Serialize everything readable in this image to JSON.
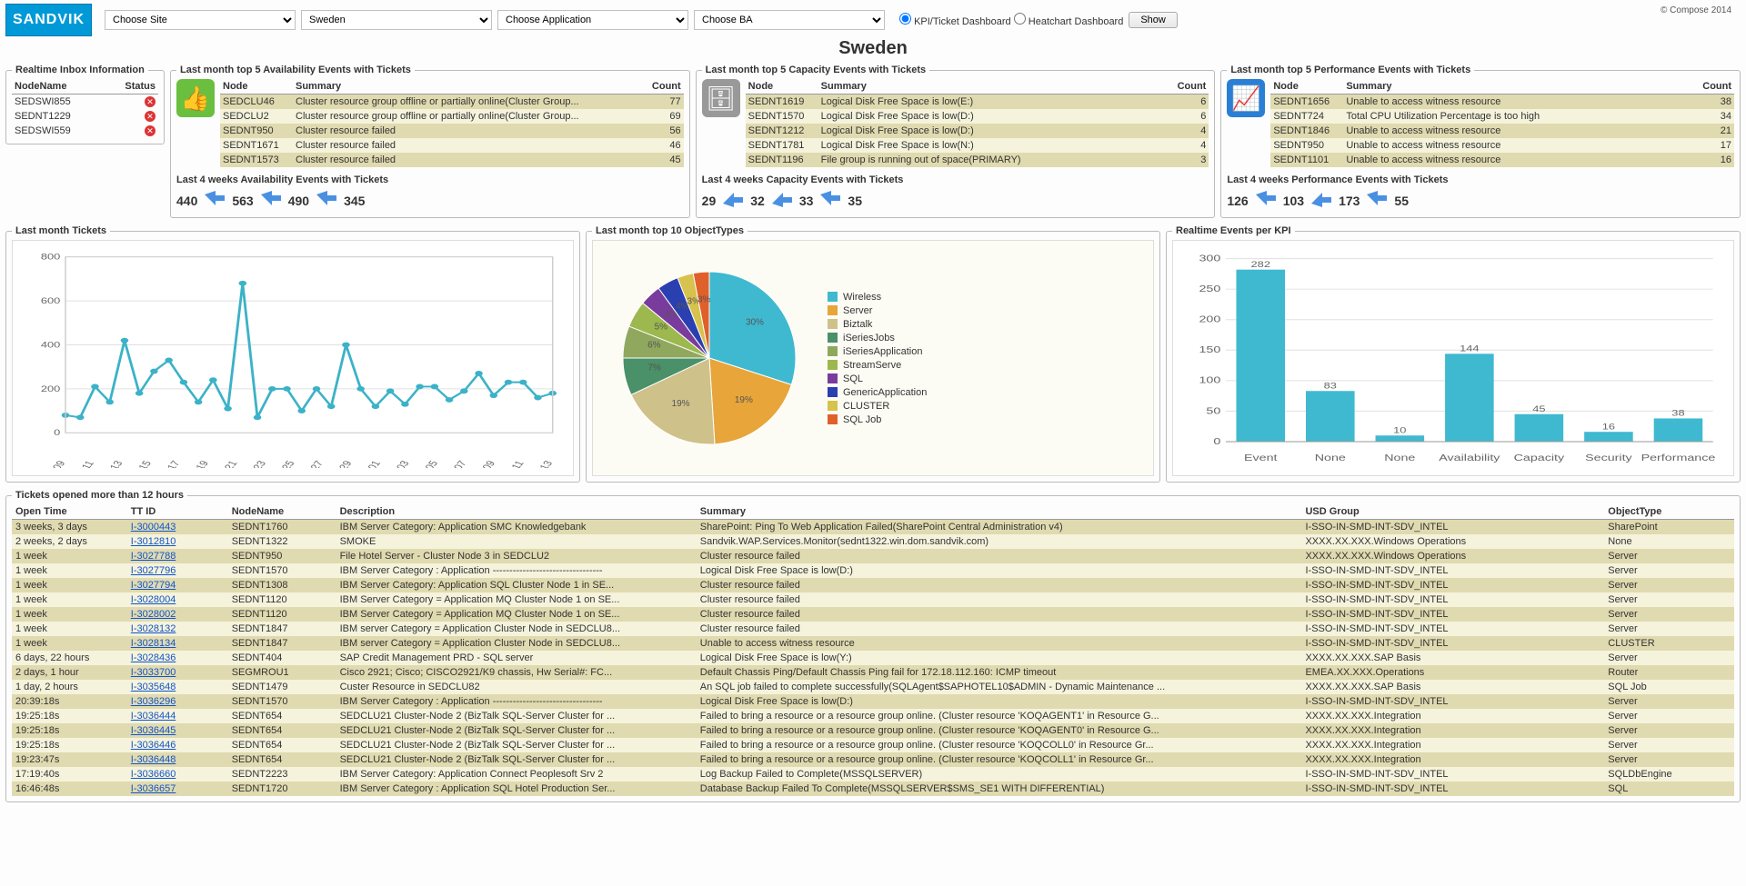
{
  "brand": {
    "name": "SANDVIK"
  },
  "copyright": "© Compose 2014",
  "filters": {
    "site_placeholder": "Choose Site",
    "country_placeholder": "Sweden",
    "application_placeholder": "Choose Application",
    "ba_placeholder": "Choose BA",
    "radio1_label": "KPI/Ticket Dashboard",
    "radio2_label": "Heatchart Dashboard",
    "show_btn": "Show"
  },
  "page_title": "Sweden",
  "inbox": {
    "title": "Realtime Inbox Information",
    "cols": [
      "NodeName",
      "Status"
    ],
    "rows": [
      {
        "node": "SEDSWI855",
        "status": "down"
      },
      {
        "node": "SEDNT1229",
        "status": "down"
      },
      {
        "node": "SEDSWI559",
        "status": "down"
      }
    ],
    "status_icon_color": "#d33"
  },
  "event_panels": [
    {
      "title": "Last month top 5 Availability Events with Tickets",
      "icon": {
        "glyph": "👍",
        "bg": "#6abf3f"
      },
      "cols": [
        "Node",
        "Summary",
        "Count"
      ],
      "rows": [
        {
          "node": "SEDCLU46",
          "summary": "Cluster resource group offline or partially online(Cluster Group...",
          "count": 77
        },
        {
          "node": "SEDCLU2",
          "summary": "Cluster resource group offline or partially online(Cluster Group...",
          "count": 69
        },
        {
          "node": "SEDNT950",
          "summary": "Cluster resource failed",
          "count": 56
        },
        {
          "node": "SEDNT1671",
          "summary": "Cluster resource failed",
          "count": 46
        },
        {
          "node": "SEDNT1573",
          "summary": "Cluster resource failed",
          "count": 45
        }
      ],
      "weeks_title": "Last 4 weeks Availability Events with Tickets",
      "weeks": [
        {
          "v": 440,
          "dir": "down"
        },
        {
          "v": 563,
          "dir": "down"
        },
        {
          "v": 490,
          "dir": "down"
        },
        {
          "v": 345,
          "dir": ""
        }
      ]
    },
    {
      "title": "Last month top 5 Capacity Events with Tickets",
      "icon": {
        "glyph": "🗄",
        "bg": "#999999"
      },
      "cols": [
        "Node",
        "Summary",
        "Count"
      ],
      "rows": [
        {
          "node": "SEDNT1619",
          "summary": "Logical Disk Free Space is low(E:)",
          "count": 6
        },
        {
          "node": "SEDNT1570",
          "summary": "Logical Disk Free Space is low(D:)",
          "count": 6
        },
        {
          "node": "SEDNT1212",
          "summary": "Logical Disk Free Space is low(D:)",
          "count": 4
        },
        {
          "node": "SEDNT1781",
          "summary": "Logical Disk Free Space is low(N:)",
          "count": 4
        },
        {
          "node": "SEDNT1196",
          "summary": "File group is running out of space(PRIMARY) ",
          "count": 3
        }
      ],
      "weeks_title": "Last 4 weeks Capacity Events with Tickets",
      "weeks": [
        {
          "v": 29,
          "dir": "up"
        },
        {
          "v": 32,
          "dir": "up"
        },
        {
          "v": 33,
          "dir": "down"
        },
        {
          "v": 35,
          "dir": ""
        }
      ]
    },
    {
      "title": "Last month top 5 Performance Events with Tickets",
      "icon": {
        "glyph": "📈",
        "bg": "#2a7fd4"
      },
      "cols": [
        "Node",
        "Summary",
        "Count"
      ],
      "rows": [
        {
          "node": "SEDNT1656",
          "summary": "Unable to access witness resource",
          "count": 38
        },
        {
          "node": "SEDNT724",
          "summary": "Total CPU Utilization Percentage is too high",
          "count": 34
        },
        {
          "node": "SEDNT1846",
          "summary": "Unable to access witness resource",
          "count": 21
        },
        {
          "node": "SEDNT950",
          "summary": "Unable to access witness resource",
          "count": 17
        },
        {
          "node": "SEDNT1101",
          "summary": "Unable to access witness resource",
          "count": 16
        }
      ],
      "weeks_title": "Last 4 weeks Performance Events with Tickets",
      "weeks": [
        {
          "v": 126,
          "dir": "down"
        },
        {
          "v": 103,
          "dir": "up"
        },
        {
          "v": 173,
          "dir": "down"
        },
        {
          "v": 55,
          "dir": ""
        }
      ]
    }
  ],
  "line_chart": {
    "title": "Last month Tickets",
    "type": "line",
    "x_labels": [
      "11-09",
      "11-11",
      "11-13",
      "11-15",
      "11-17",
      "11-19",
      "11-21",
      "11-23",
      "11-25",
      "11-27",
      "11-29",
      "12-01",
      "12-03",
      "12-05",
      "12-07",
      "12-09",
      "12-11",
      "12-13"
    ],
    "values": [
      80,
      70,
      210,
      140,
      420,
      180,
      280,
      330,
      230,
      140,
      240,
      110,
      680,
      70,
      200,
      200,
      100,
      200,
      120,
      400,
      200,
      120,
      190,
      130,
      210,
      210,
      150,
      190,
      270,
      170,
      230,
      230,
      160,
      180
    ],
    "ylim": [
      0,
      800
    ],
    "ytick_step": 200,
    "line_color": "#3bb2c7",
    "line_width": 2,
    "marker_color": "#3bb2c7",
    "marker_size": 3,
    "grid_color": "#e0e0e0",
    "background_color": "#ffffff",
    "axis_font_size": 9
  },
  "pie_chart": {
    "title": "Last month top 10 ObjectTypes",
    "type": "pie",
    "slices": [
      {
        "label": "Wireless",
        "pct": 30,
        "color": "#3fb9d0"
      },
      {
        "label": "Server",
        "pct": 19,
        "color": "#e7a53a"
      },
      {
        "label": "Biztalk",
        "pct": 19,
        "color": "#cfc18a"
      },
      {
        "label": "iSeriesJobs",
        "pct": 7,
        "color": "#4a9068"
      },
      {
        "label": "iSeriesApplication",
        "pct": 6,
        "color": "#8fa85e"
      },
      {
        "label": "StreamServe",
        "pct": 5,
        "color": "#9cb84e"
      },
      {
        "label": "SQL",
        "pct": 4,
        "color": "#7a3c9c"
      },
      {
        "label": "GenericApplication",
        "pct": 4,
        "color": "#2a3fb0"
      },
      {
        "label": "CLUSTER",
        "pct": 3,
        "color": "#d6c24c"
      },
      {
        "label": "SQL Job",
        "pct": 3,
        "color": "#e0602a"
      }
    ],
    "background_color": "#fdfcf4",
    "legend_font_size": 11
  },
  "bar_chart": {
    "title": "Realtime Events per KPI",
    "type": "bar",
    "categories": [
      "Event",
      "None",
      "None",
      "Availability",
      "Capacity",
      "Security",
      "Performance"
    ],
    "values": [
      282,
      83,
      10,
      144,
      45,
      16,
      38
    ],
    "bar_color": "#3fb9d0",
    "ylim": [
      0,
      300
    ],
    "ytick_step": 50,
    "grid_color": "#e0e0e0",
    "background_color": "#ffffff",
    "value_label_font_size": 9,
    "axis_font_size": 10
  },
  "tickets": {
    "title": "Tickets opened more than 12 hours",
    "cols": [
      "Open Time",
      "TT ID",
      "NodeName",
      "Description",
      "Summary",
      "USD Group",
      "ObjectType"
    ],
    "col_widths": [
      "80px",
      "70px",
      "75px",
      "250px",
      "420px",
      "210px",
      "90px"
    ],
    "rows": [
      {
        "open": "3 weeks, 3 days",
        "tt": "I-3000443",
        "node": "SEDNT1760",
        "desc": "IBM Server Category: Application SMC Knowledgebank",
        "sum": "SharePoint: Ping To Web Application Failed(SharePoint Central Administration v4)",
        "usd": "I-SSO-IN-SMD-INT-SDV_INTEL",
        "obj": "SharePoint"
      },
      {
        "open": "2 weeks, 2 days",
        "tt": "I-3012810",
        "node": "SEDNT1322",
        "desc": "SMOKE",
        "sum": "Sandvik.WAP.Services.Monitor(sednt1322.win.dom.sandvik.com)",
        "usd": "XXXX.XX.XXX.Windows Operations",
        "obj": "None"
      },
      {
        "open": "1 week",
        "tt": "I-3027788",
        "node": "SEDNT950",
        "desc": "File Hotel Server - Cluster Node 3 in SEDCLU2",
        "sum": "Cluster resource failed",
        "usd": "XXXX.XX.XXX.Windows Operations",
        "obj": "Server"
      },
      {
        "open": "1 week",
        "tt": "I-3027796",
        "node": "SEDNT1570",
        "desc": "IBM Server Category : Application ---------------------------------",
        "sum": "Logical Disk Free Space is low(D:)",
        "usd": "I-SSO-IN-SMD-INT-SDV_INTEL",
        "obj": "Server"
      },
      {
        "open": "1 week",
        "tt": "I-3027794",
        "node": "SEDNT1308",
        "desc": "IBM Server Category: Application SQL Cluster Node 1 in SE...",
        "sum": "Cluster resource failed",
        "usd": "I-SSO-IN-SMD-INT-SDV_INTEL",
        "obj": "Server"
      },
      {
        "open": "1 week",
        "tt": "I-3028004",
        "node": "SEDNT1120",
        "desc": "IBM Server Category = Application MQ Cluster Node 1 on SE...",
        "sum": "Cluster resource failed",
        "usd": "I-SSO-IN-SMD-INT-SDV_INTEL",
        "obj": "Server"
      },
      {
        "open": "1 week",
        "tt": "I-3028002",
        "node": "SEDNT1120",
        "desc": "IBM Server Category = Application MQ Cluster Node 1 on SE...",
        "sum": "Cluster resource failed",
        "usd": "I-SSO-IN-SMD-INT-SDV_INTEL",
        "obj": "Server"
      },
      {
        "open": "1 week",
        "tt": "I-3028132",
        "node": "SEDNT1847",
        "desc": "IBM server Category = Application Cluster Node in SEDCLU8...",
        "sum": "Cluster resource failed",
        "usd": "I-SSO-IN-SMD-INT-SDV_INTEL",
        "obj": "Server"
      },
      {
        "open": "1 week",
        "tt": "I-3028134",
        "node": "SEDNT1847",
        "desc": "IBM server Category = Application Cluster Node in SEDCLU8...",
        "sum": "Unable to access witness resource",
        "usd": "I-SSO-IN-SMD-INT-SDV_INTEL",
        "obj": "CLUSTER"
      },
      {
        "open": "6 days, 22 hours",
        "tt": "I-3028436",
        "node": "SEDNT404",
        "desc": "SAP Credit Management PRD - SQL server",
        "sum": "Logical Disk Free Space is low(Y:)",
        "usd": "XXXX.XX.XXX.SAP Basis",
        "obj": "Server"
      },
      {
        "open": "2 days, 1 hour",
        "tt": "I-3033700",
        "node": "SEGMROU1",
        "desc": "Cisco 2921; Cisco; CISCO2921/K9 chassis, Hw Serial#: FC...",
        "sum": "Default Chassis Ping/Default Chassis Ping fail for 172.18.112.160: ICMP timeout",
        "usd": "EMEA.XX.XXX.Operations",
        "obj": "Router"
      },
      {
        "open": "1 day, 2 hours",
        "tt": "I-3035648",
        "node": "SEDNT1479",
        "desc": "Custer Resource in SEDCLU82",
        "sum": "An SQL job failed to complete successfully(SQLAgent$SAPHOTEL10$ADMIN - Dynamic Maintenance ...",
        "usd": "XXXX.XX.XXX.SAP Basis",
        "obj": "SQL Job"
      },
      {
        "open": "20:39:18s",
        "tt": "I-3036296",
        "node": "SEDNT1570",
        "desc": "IBM Server Category : Application ---------------------------------",
        "sum": "Logical Disk Free Space is low(D:)",
        "usd": "I-SSO-IN-SMD-INT-SDV_INTEL",
        "obj": "Server"
      },
      {
        "open": "19:25:18s",
        "tt": "I-3036444",
        "node": "SEDNT654",
        "desc": "SEDCLU21 Cluster-Node 2 (BizTalk SQL-Server Cluster for ...",
        "sum": "Failed to bring a resource or a resource group online. (Cluster resource 'KOQAGENT1' in Resource G...",
        "usd": "XXXX.XX.XXX.Integration",
        "obj": "Server"
      },
      {
        "open": "19:25:18s",
        "tt": "I-3036445",
        "node": "SEDNT654",
        "desc": "SEDCLU21 Cluster-Node 2 (BizTalk SQL-Server Cluster for ...",
        "sum": "Failed to bring a resource or a resource group online. (Cluster resource 'KOQAGENT0' in Resource G...",
        "usd": "XXXX.XX.XXX.Integration",
        "obj": "Server"
      },
      {
        "open": "19:25:18s",
        "tt": "I-3036446",
        "node": "SEDNT654",
        "desc": "SEDCLU21 Cluster-Node 2 (BizTalk SQL-Server Cluster for ...",
        "sum": "Failed to bring a resource or a resource group online. (Cluster resource 'KOQCOLL0' in Resource Gr...",
        "usd": "XXXX.XX.XXX.Integration",
        "obj": "Server"
      },
      {
        "open": "19:23:47s",
        "tt": "I-3036448",
        "node": "SEDNT654",
        "desc": "SEDCLU21 Cluster-Node 2 (BizTalk SQL-Server Cluster for ...",
        "sum": "Failed to bring a resource or a resource group online. (Cluster resource 'KOQCOLL1' in Resource Gr...",
        "usd": "XXXX.XX.XXX.Integration",
        "obj": "Server"
      },
      {
        "open": "17:19:40s",
        "tt": "I-3036660",
        "node": "SEDNT2223",
        "desc": "IBM Server Category: Application Connect Peoplesoft Srv 2",
        "sum": "Log Backup Failed to Complete(MSSQLSERVER)",
        "usd": "I-SSO-IN-SMD-INT-SDV_INTEL",
        "obj": "SQLDbEngine"
      },
      {
        "open": "16:46:48s",
        "tt": "I-3036657",
        "node": "SEDNT1720",
        "desc": "IBM Server Category : Application SQL Hotel Production Ser...",
        "sum": "Database Backup Failed To Complete(MSSQLSERVER$SMS_SE1 WITH DIFFERENTIAL)",
        "usd": "I-SSO-IN-SMD-INT-SDV_INTEL",
        "obj": "SQL"
      }
    ]
  },
  "colors": {
    "row_dark": "#e0dab0",
    "row_light": "#f5f3dc"
  }
}
